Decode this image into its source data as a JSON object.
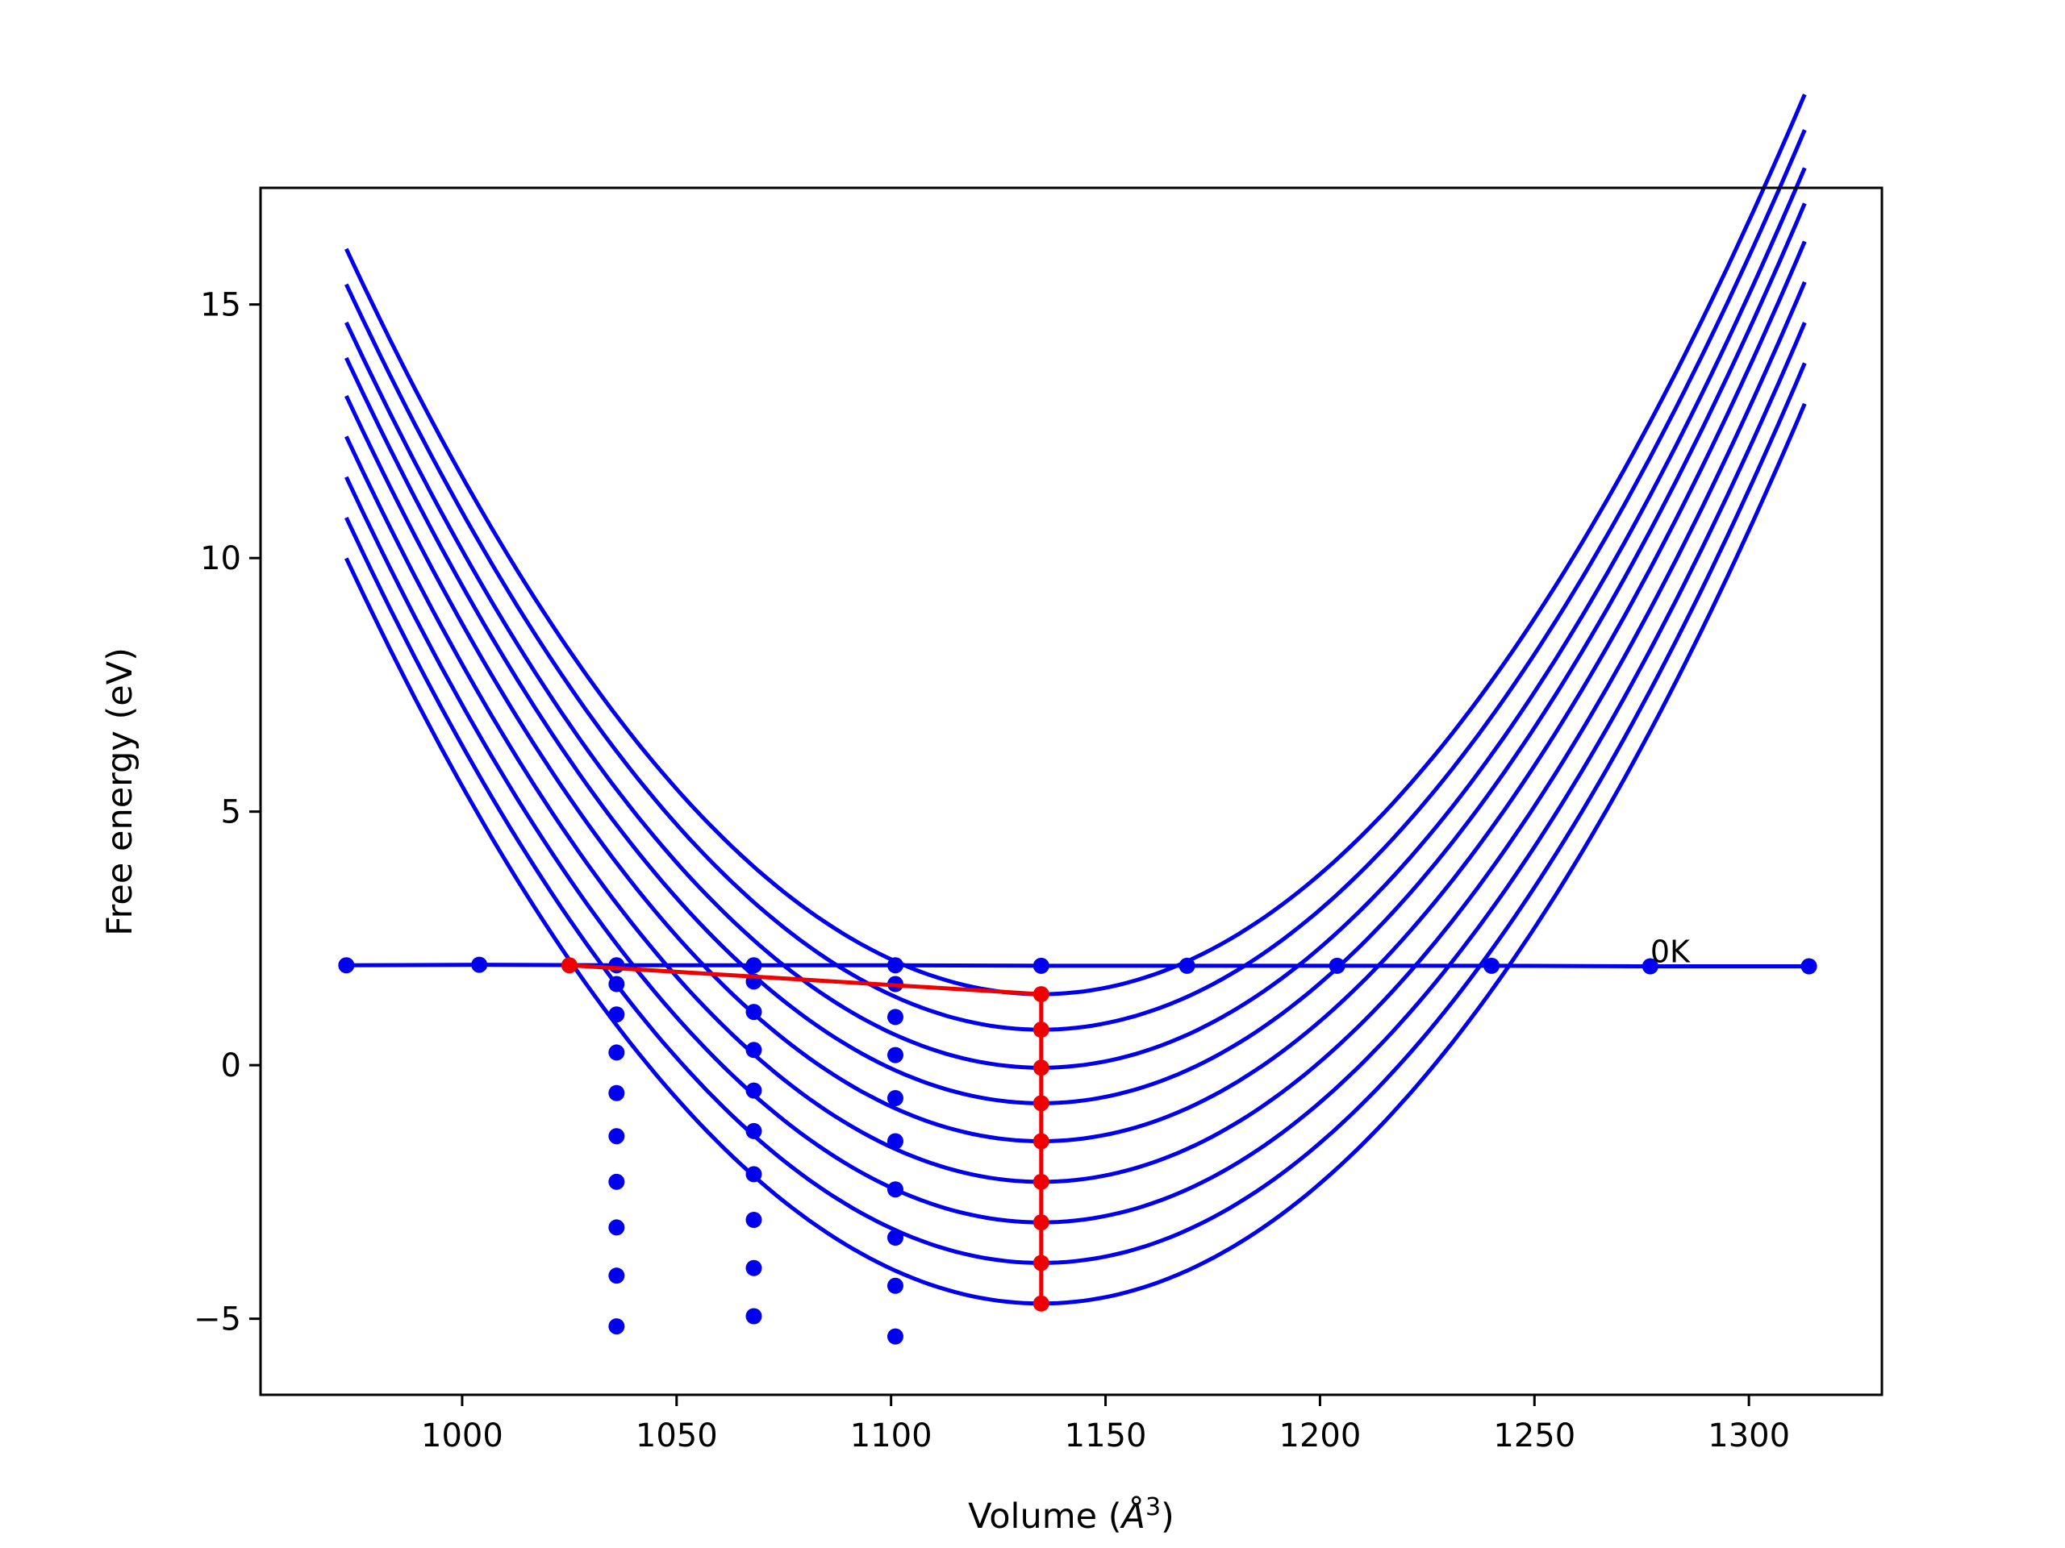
{
  "chart_data": {
    "type": "line",
    "xlabel": "Volume (",
    "xlabel_unit": "Å",
    "xlabel_sup": "3",
    "xlabel_close": ")",
    "ylabel": "Free energy (eV)",
    "xlim": [
      953,
      1331
    ],
    "ylim": [
      -6.5,
      17.3
    ],
    "xticks": [
      1000,
      1050,
      1100,
      1150,
      1200,
      1250,
      1300
    ],
    "xtick_labels": [
      "1000",
      "1050",
      "1100",
      "1150",
      "1200",
      "1250",
      "1300"
    ],
    "yticks": [
      -5,
      0,
      5,
      10,
      15
    ],
    "ytick_labels": [
      "−5",
      "0",
      "5",
      "10",
      "15"
    ],
    "grid": false,
    "colors": {
      "curves": "#0000ee",
      "minimum_path": "#ee0000"
    },
    "curve_x_range": [
      973,
      1314
    ],
    "curves": [
      {
        "min_x": 1135,
        "min_y": 1.4,
        "curvature": 0.00056
      },
      {
        "min_x": 1135,
        "min_y": 0.7,
        "curvature": 0.00056
      },
      {
        "min_x": 1135,
        "min_y": -0.05,
        "curvature": 0.00056
      },
      {
        "min_x": 1135,
        "min_y": -0.75,
        "curvature": 0.00056
      },
      {
        "min_x": 1135,
        "min_y": -1.5,
        "curvature": 0.00056
      },
      {
        "min_x": 1135,
        "min_y": -2.3,
        "curvature": 0.00056
      },
      {
        "min_x": 1135,
        "min_y": -3.1,
        "curvature": 0.00056
      },
      {
        "min_x": 1135,
        "min_y": -3.9,
        "curvature": 0.00056
      },
      {
        "min_x": 1135,
        "min_y": -4.7,
        "curvature": 0.00056
      }
    ],
    "horizontal_series": {
      "x": [
        973,
        1004,
        1036,
        1068,
        1101,
        1135,
        1169,
        1204,
        1240,
        1277,
        1314
      ],
      "y": [
        1.97,
        1.98,
        1.97,
        1.97,
        1.97,
        1.96,
        1.96,
        1.96,
        1.96,
        1.95,
        1.95
      ]
    },
    "scatter_series": [
      {
        "x": 1036,
        "y": [
          1.6,
          1.0,
          0.25,
          -0.55,
          -1.4,
          -2.3,
          -3.2,
          -4.15,
          -5.15
        ]
      },
      {
        "x": 1068,
        "y": [
          1.65,
          1.05,
          0.3,
          -0.5,
          -1.3,
          -2.15,
          -3.05,
          -4.0,
          -4.95
        ]
      },
      {
        "x": 1101,
        "y": [
          1.6,
          0.95,
          0.2,
          -0.65,
          -1.5,
          -2.45,
          -3.4,
          -4.35,
          -5.35
        ]
      }
    ],
    "minimum_path": {
      "x": [
        1025,
        1135,
        1135,
        1135,
        1135,
        1135,
        1135,
        1135,
        1135,
        1135
      ],
      "y": [
        1.97,
        1.4,
        0.7,
        -0.05,
        -0.75,
        -1.5,
        -2.3,
        -3.1,
        -3.9,
        -4.7
      ]
    },
    "annotation": {
      "text": "0K",
      "x": 1277,
      "y": 2.25
    }
  }
}
